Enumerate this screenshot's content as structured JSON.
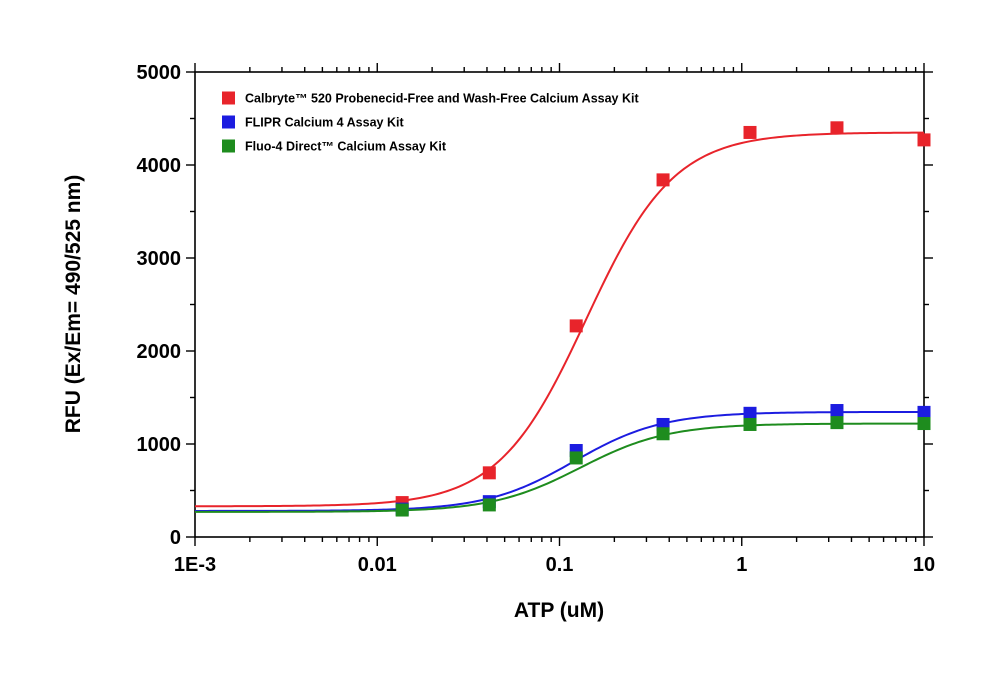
{
  "chart_data": {
    "type": "scatter",
    "title": "",
    "xlabel": "ATP (uM)",
    "ylabel": "RFU (Ex/Em= 490/525 nm)",
    "xscale": "log",
    "xlim": [
      0.001,
      10
    ],
    "ylim": [
      0,
      5000
    ],
    "x_ticks": [
      {
        "value": 0.001,
        "label": "1E-3"
      },
      {
        "value": 0.01,
        "label": "0.01"
      },
      {
        "value": 0.1,
        "label": "0.1"
      },
      {
        "value": 1,
        "label": "1"
      },
      {
        "value": 10,
        "label": "10"
      }
    ],
    "y_ticks": [
      {
        "value": 0,
        "label": "0"
      },
      {
        "value": 1000,
        "label": "1000"
      },
      {
        "value": 2000,
        "label": "2000"
      },
      {
        "value": 3000,
        "label": "3000"
      },
      {
        "value": 4000,
        "label": "4000"
      },
      {
        "value": 5000,
        "label": "5000"
      }
    ],
    "grid": false,
    "legend_position": "top-left",
    "series": [
      {
        "name": "Calbryte™ 520 Probenecid-Free and Wash-Free Calcium Assay Kit",
        "color": "#e8242b",
        "x": [
          0.0137,
          0.0412,
          0.1235,
          0.37,
          1.11,
          3.33,
          10
        ],
        "y": [
          370,
          690,
          2270,
          3840,
          4350,
          4400,
          4270
        ],
        "fit": {
          "bottom": 330,
          "top": 4350,
          "ec50": 0.14,
          "hill": 1.8
        }
      },
      {
        "name": "FLIPR Calcium 4 Assay Kit",
        "color": "#1c1ce0",
        "x": [
          0.0137,
          0.0412,
          0.1235,
          0.37,
          1.11,
          3.33,
          10
        ],
        "y": [
          300,
          380,
          930,
          1210,
          1330,
          1360,
          1340
        ],
        "fit": {
          "bottom": 280,
          "top": 1345,
          "ec50": 0.12,
          "hill": 1.8
        }
      },
      {
        "name": "Fluo-4 Direct™ Calcium Assay Kit",
        "color": "#1e8c1e",
        "x": [
          0.0137,
          0.0412,
          0.1235,
          0.37,
          1.11,
          3.33,
          10
        ],
        "y": [
          290,
          345,
          850,
          1110,
          1210,
          1230,
          1220
        ],
        "fit": {
          "bottom": 270,
          "top": 1220,
          "ec50": 0.13,
          "hill": 1.8
        }
      }
    ]
  }
}
